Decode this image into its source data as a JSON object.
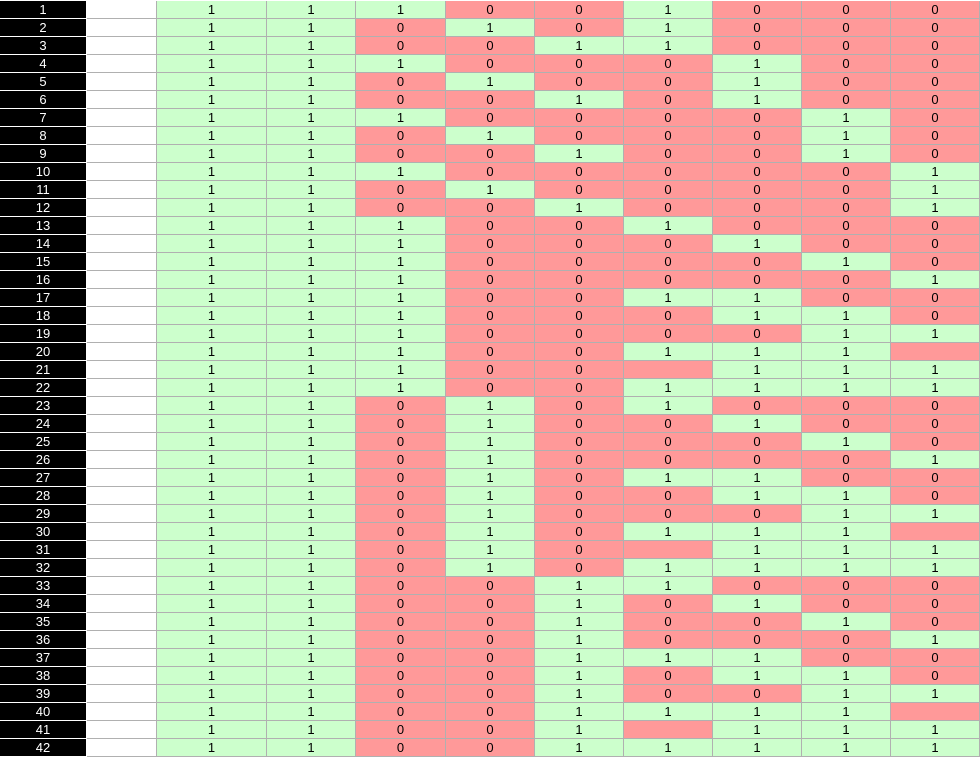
{
  "table": {
    "rows": [
      [
        1,
        1,
        1,
        1,
        0,
        0,
        1,
        0,
        0,
        0
      ],
      [
        2,
        1,
        1,
        0,
        1,
        0,
        1,
        0,
        0,
        0
      ],
      [
        3,
        1,
        1,
        0,
        0,
        1,
        1,
        0,
        0,
        0
      ],
      [
        4,
        1,
        1,
        1,
        0,
        0,
        0,
        1,
        0,
        0
      ],
      [
        5,
        1,
        1,
        0,
        1,
        0,
        0,
        1,
        0,
        0
      ],
      [
        6,
        1,
        1,
        0,
        0,
        1,
        0,
        1,
        0,
        0
      ],
      [
        7,
        1,
        1,
        1,
        0,
        0,
        0,
        0,
        1,
        0
      ],
      [
        8,
        1,
        1,
        0,
        1,
        0,
        0,
        0,
        1,
        0
      ],
      [
        9,
        1,
        1,
        0,
        0,
        1,
        0,
        0,
        1,
        0
      ],
      [
        10,
        1,
        1,
        1,
        0,
        0,
        0,
        0,
        0,
        1
      ],
      [
        11,
        1,
        1,
        0,
        1,
        0,
        0,
        0,
        0,
        1
      ],
      [
        12,
        1,
        1,
        0,
        0,
        1,
        0,
        0,
        0,
        1
      ],
      [
        13,
        1,
        1,
        1,
        0,
        0,
        1,
        0,
        0,
        0
      ],
      [
        14,
        1,
        1,
        1,
        0,
        0,
        0,
        1,
        0,
        0
      ],
      [
        15,
        1,
        1,
        1,
        0,
        0,
        0,
        0,
        1,
        0
      ],
      [
        16,
        1,
        1,
        1,
        0,
        0,
        0,
        0,
        0,
        1
      ],
      [
        17,
        1,
        1,
        1,
        0,
        0,
        1,
        1,
        0,
        0
      ],
      [
        18,
        1,
        1,
        1,
        0,
        0,
        0,
        1,
        1,
        0
      ],
      [
        19,
        1,
        1,
        1,
        0,
        0,
        0,
        0,
        1,
        1
      ],
      [
        20,
        1,
        1,
        1,
        0,
        0,
        1,
        1,
        1,
        null
      ],
      [
        21,
        1,
        1,
        1,
        0,
        0,
        null,
        1,
        1,
        1
      ],
      [
        22,
        1,
        1,
        1,
        0,
        0,
        1,
        1,
        1,
        1
      ],
      [
        23,
        1,
        1,
        0,
        1,
        0,
        1,
        0,
        0,
        0
      ],
      [
        24,
        1,
        1,
        0,
        1,
        0,
        0,
        1,
        0,
        0
      ],
      [
        25,
        1,
        1,
        0,
        1,
        0,
        0,
        0,
        1,
        0
      ],
      [
        26,
        1,
        1,
        0,
        1,
        0,
        0,
        0,
        0,
        1
      ],
      [
        27,
        1,
        1,
        0,
        1,
        0,
        1,
        1,
        0,
        0
      ],
      [
        28,
        1,
        1,
        0,
        1,
        0,
        0,
        1,
        1,
        0
      ],
      [
        29,
        1,
        1,
        0,
        1,
        0,
        0,
        0,
        1,
        1
      ],
      [
        30,
        1,
        1,
        0,
        1,
        0,
        1,
        1,
        1,
        null
      ],
      [
        31,
        1,
        1,
        0,
        1,
        0,
        null,
        1,
        1,
        1
      ],
      [
        32,
        1,
        1,
        0,
        1,
        0,
        1,
        1,
        1,
        1
      ],
      [
        33,
        1,
        1,
        0,
        0,
        1,
        1,
        0,
        0,
        0
      ],
      [
        34,
        1,
        1,
        0,
        0,
        1,
        0,
        1,
        0,
        0
      ],
      [
        35,
        1,
        1,
        0,
        0,
        1,
        0,
        0,
        1,
        0
      ],
      [
        36,
        1,
        1,
        0,
        0,
        1,
        0,
        0,
        0,
        1
      ],
      [
        37,
        1,
        1,
        0,
        0,
        1,
        1,
        1,
        0,
        0
      ],
      [
        38,
        1,
        1,
        0,
        0,
        1,
        0,
        1,
        1,
        0
      ],
      [
        39,
        1,
        1,
        0,
        0,
        1,
        0,
        0,
        1,
        1
      ],
      [
        40,
        1,
        1,
        0,
        0,
        1,
        1,
        1,
        1,
        null
      ],
      [
        41,
        1,
        1,
        0,
        0,
        1,
        null,
        1,
        1,
        1
      ],
      [
        42,
        1,
        1,
        0,
        0,
        1,
        1,
        1,
        1,
        1
      ]
    ]
  }
}
